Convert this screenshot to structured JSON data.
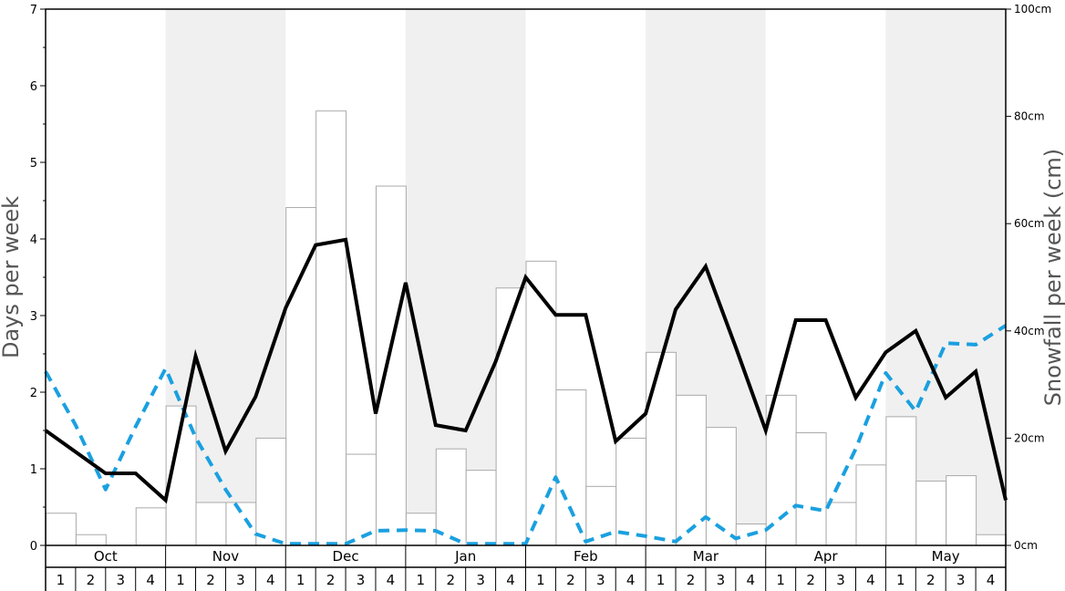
{
  "chart_data": {
    "type": "bar",
    "title": "",
    "y_left": {
      "label": "Days per week",
      "range": [
        0,
        7
      ],
      "ticks": [
        0,
        1,
        2,
        3,
        4,
        5,
        6,
        7
      ]
    },
    "y_right": {
      "label": "Snowfall per week (cm)",
      "range": [
        0,
        100
      ],
      "ticks": [
        "0cm",
        "20cm",
        "40cm",
        "60cm",
        "80cm",
        "100cm"
      ]
    },
    "months": [
      "Oct",
      "Nov",
      "Dec",
      "Jan",
      "Feb",
      "Mar",
      "Apr",
      "May"
    ],
    "week_labels": [
      "1",
      "2",
      "3",
      "4"
    ],
    "grid": false,
    "colors": {
      "shade": "#f0f0f0",
      "bar_fill": "#ffffff",
      "bar_stroke": "#aaaaaa",
      "line_black": "#000000",
      "line_blue": "#1aa0e0",
      "axis_title": "#555555"
    },
    "series": [
      {
        "kind": "bars",
        "axis": "left",
        "values": [
          0.42,
          0.14,
          0,
          0.49,
          1.82,
          0.56,
          0.56,
          1.4,
          4.41,
          5.67,
          1.19,
          4.69,
          0.42,
          1.26,
          0.98,
          3.36,
          3.71,
          2.03,
          0.77,
          1.4,
          2.52,
          1.96,
          1.54,
          0.28,
          1.96,
          1.47,
          0.56,
          1.05,
          1.68,
          0.84,
          0.91,
          0.14
        ]
      },
      {
        "kind": "line",
        "axis": "left",
        "style": "solid",
        "values": [
          1.5,
          1.22,
          0.94,
          0.94,
          0.59,
          2.47,
          1.23,
          1.94,
          3.1,
          3.92,
          3.99,
          1.72,
          3.43,
          1.57,
          1.5,
          2.4,
          3.5,
          3.01,
          3.01,
          1.36,
          1.72,
          3.08,
          3.64,
          2.59,
          1.5,
          2.94,
          2.94,
          1.93,
          2.52,
          2.8,
          1.93,
          2.27,
          0.59
        ]
      },
      {
        "kind": "line",
        "axis": "left",
        "style": "dashed",
        "values": [
          2.27,
          1.57,
          0.73,
          1.55,
          2.31,
          1.41,
          0.73,
          0.15,
          0.02,
          0.02,
          0.02,
          0.19,
          0.2,
          0.19,
          0.02,
          0.02,
          0.02,
          0.89,
          0.05,
          0.18,
          0.12,
          0.05,
          0.37,
          0.09,
          0.2,
          0.52,
          0.45,
          1.26,
          2.25,
          1.75,
          2.64,
          2.62,
          2.87
        ]
      }
    ]
  }
}
